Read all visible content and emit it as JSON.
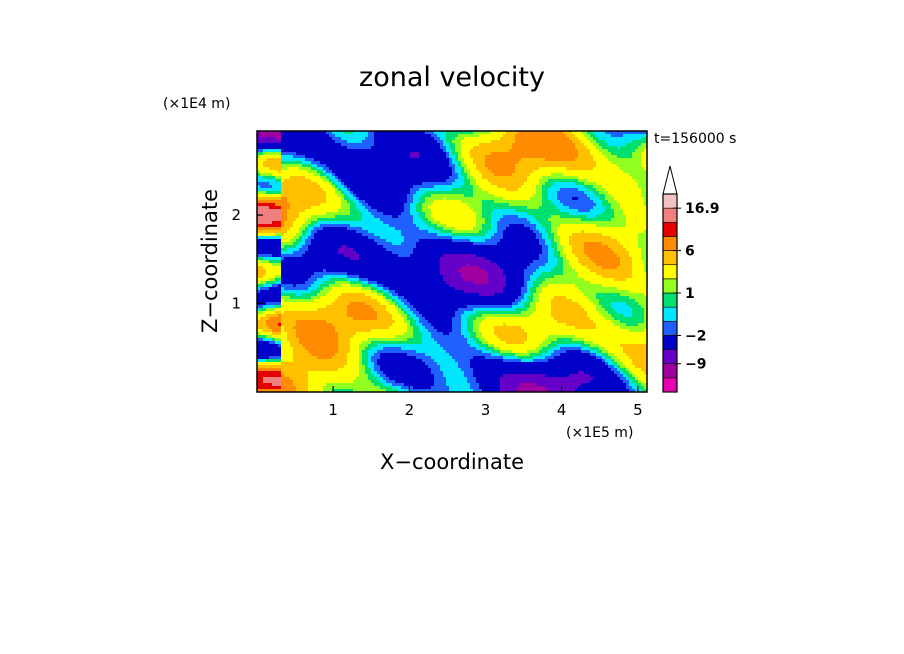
{
  "chart_data": {
    "type": "heatmap",
    "title": "zonal velocity",
    "xlabel": "X−coordinate",
    "ylabel": "Z−coordinate",
    "x_scale_label": "(×1E5 m)",
    "y_scale_label": "(×1E4 m)",
    "time_label": "t=156000 s",
    "xlim": [
      0,
      5.12
    ],
    "ylim": [
      0,
      2.95
    ],
    "x_ticks": [
      {
        "value": 1,
        "label": "1"
      },
      {
        "value": 2,
        "label": "2"
      },
      {
        "value": 3,
        "label": "3"
      },
      {
        "value": 4,
        "label": "4"
      },
      {
        "value": 5,
        "label": "5"
      }
    ],
    "y_ticks": [
      {
        "value": 1,
        "label": "1"
      },
      {
        "value": 2,
        "label": "2"
      }
    ],
    "colorbar": {
      "levels": [
        -12,
        -9,
        -6,
        -2,
        -1,
        0,
        1,
        2,
        4,
        6,
        9,
        12,
        16.9
      ],
      "colors": [
        "#e600b4",
        "#a000a0",
        "#6400c8",
        "#0000c8",
        "#2060ff",
        "#00e6ff",
        "#00e070",
        "#90ff20",
        "#ffff00",
        "#ffc000",
        "#ff8c00",
        "#e60000",
        "#f08080",
        "#f4c2c2"
      ],
      "labels": [
        {
          "value": 16.9,
          "label": "16.9"
        },
        {
          "value": 6,
          "label": "6"
        },
        {
          "value": 1,
          "label": "1"
        },
        {
          "value": -2,
          "label": "−2"
        },
        {
          "value": -9,
          "label": "−9"
        }
      ],
      "extend_top": true
    },
    "grid": false
  }
}
